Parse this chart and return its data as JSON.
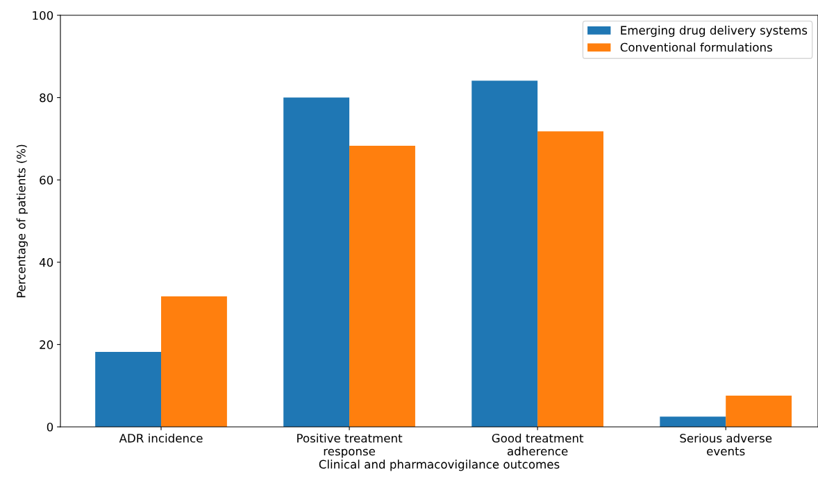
{
  "chart_data": {
    "type": "bar",
    "xlabel": "Clinical and pharmacovigilance outcomes",
    "ylabel": "Percentage of patients (%)",
    "categories": [
      "ADR incidence",
      "Positive treatment\nresponse",
      "Good treatment\nadherence",
      "Serious adverse\nevents"
    ],
    "series": [
      {
        "name": "Emerging drug delivery systems",
        "color": "#1f77b4",
        "values": [
          18.2,
          80.0,
          84.1,
          2.5
        ]
      },
      {
        "name": "Conventional formulations",
        "color": "#ff7f0e",
        "values": [
          31.7,
          68.3,
          71.8,
          7.6
        ]
      }
    ],
    "ylim": [
      0,
      100
    ],
    "yticks": [
      0,
      20,
      40,
      60,
      80,
      100
    ],
    "grid": false,
    "legend": "top right"
  }
}
